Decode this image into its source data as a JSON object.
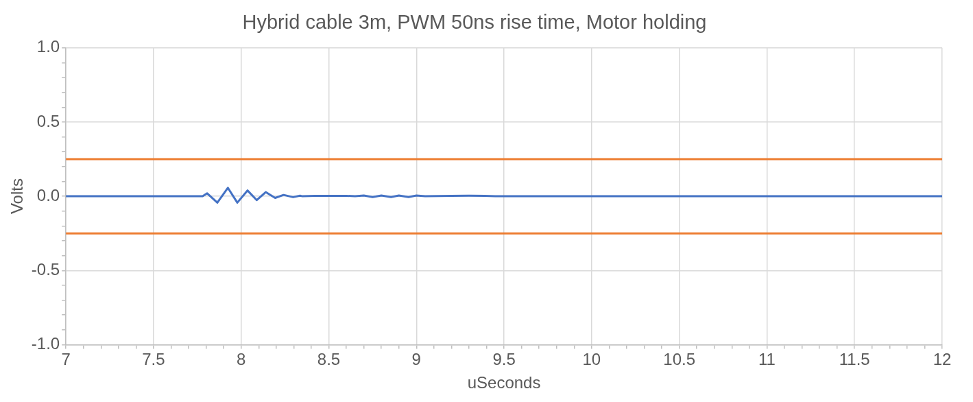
{
  "chart_data": {
    "type": "line",
    "title": "Hybrid cable 3m, PWM 50ns rise time, Motor holding",
    "xlabel": "uSeconds",
    "ylabel": "Volts",
    "series": [
      {
        "color": "#4472c4",
        "x": [
          7,
          7.78,
          7.806,
          7.864,
          7.924,
          7.978,
          8.036,
          8.089,
          8.14,
          8.194,
          8.242,
          8.296,
          8.336,
          8.35,
          8.42,
          8.6,
          8.65,
          8.7,
          8.75,
          8.8,
          8.855,
          8.9,
          8.955,
          9.0,
          9.05,
          9.2,
          9.3,
          9.39,
          9.45,
          12
        ],
        "values": [
          0,
          0,
          0.02,
          -0.043,
          0.057,
          -0.043,
          0.039,
          -0.026,
          0.028,
          -0.011,
          0.009,
          -0.006,
          0.004,
          0,
          0.003,
          0.003,
          0,
          0.005,
          -0.005,
          0.005,
          -0.005,
          0.005,
          -0.005,
          0.005,
          0,
          0.003,
          0.004,
          0.003,
          0,
          0
        ]
      }
    ],
    "ref_lines": [
      {
        "axis": "y",
        "value": 0.25,
        "color": "#ed7d31"
      },
      {
        "axis": "y",
        "value": -0.25,
        "color": "#ed7d31"
      }
    ],
    "xlim": [
      7,
      12
    ],
    "ylim": [
      -1,
      1
    ],
    "xticks": [
      7,
      {
        "value": 7.1,
        "label": null
      },
      {
        "value": 7.2,
        "label": null
      },
      {
        "value": 7.3,
        "label": null
      },
      {
        "value": 7.4,
        "label": null
      },
      7.5,
      {
        "value": 7.6,
        "label": null
      },
      {
        "value": 7.7,
        "label": null
      },
      {
        "value": 7.8,
        "label": null
      },
      {
        "value": 7.9,
        "label": null
      },
      8,
      {
        "value": 8.1,
        "label": null
      },
      {
        "value": 8.2,
        "label": null
      },
      {
        "value": 8.3,
        "label": null
      },
      {
        "value": 8.4,
        "label": null
      },
      8.5,
      {
        "value": 8.6,
        "label": null
      },
      {
        "value": 8.7,
        "label": null
      },
      {
        "value": 8.8,
        "label": null
      },
      {
        "value": 8.9,
        "label": null
      },
      9,
      {
        "value": 9.1,
        "label": null
      },
      {
        "value": 9.2,
        "label": null
      },
      {
        "value": 9.3,
        "label": null
      },
      {
        "value": 9.4,
        "label": null
      },
      9.5,
      {
        "value": 9.6,
        "label": null
      },
      {
        "value": 9.7,
        "label": null
      },
      {
        "value": 9.8,
        "label": null
      },
      {
        "value": 9.9,
        "label": null
      },
      10,
      {
        "value": 10.1,
        "label": null
      },
      {
        "value": 10.2,
        "label": null
      },
      {
        "value": 10.3,
        "label": null
      },
      {
        "value": 10.4,
        "label": null
      },
      10.5,
      {
        "value": 10.6,
        "label": null
      },
      {
        "value": 10.7,
        "label": null
      },
      {
        "value": 10.8,
        "label": null
      },
      {
        "value": 10.9,
        "label": null
      },
      11,
      {
        "value": 11.1,
        "label": null
      },
      {
        "value": 11.2,
        "label": null
      },
      {
        "value": 11.3,
        "label": null
      },
      {
        "value": 11.4,
        "label": null
      },
      11.5,
      {
        "value": 11.6,
        "label": null
      },
      {
        "value": 11.7,
        "label": null
      },
      {
        "value": 11.8,
        "label": null
      },
      {
        "value": 11.9,
        "label": null
      },
      12
    ],
    "yticks": [
      {
        "value": -1,
        "label": "-1.0"
      },
      {
        "value": -0.9,
        "label": null
      },
      {
        "value": -0.8,
        "label": null
      },
      {
        "value": -0.7,
        "label": null
      },
      {
        "value": -0.6,
        "label": null
      },
      {
        "value": -0.5,
        "label": "-0.5"
      },
      {
        "value": -0.4,
        "label": null
      },
      {
        "value": -0.3,
        "label": null
      },
      {
        "value": -0.2,
        "label": null
      },
      {
        "value": -0.1,
        "label": null
      },
      {
        "value": 0,
        "label": "0.0"
      },
      {
        "value": 0.1,
        "label": null
      },
      {
        "value": 0.2,
        "label": null
      },
      {
        "value": 0.3,
        "label": null
      },
      {
        "value": 0.4,
        "label": null
      },
      {
        "value": 0.5,
        "label": "0.5"
      },
      {
        "value": 0.6,
        "label": null
      },
      {
        "value": 0.7,
        "label": null
      },
      {
        "value": 0.8,
        "label": null
      },
      {
        "value": 0.9,
        "label": null
      },
      {
        "value": 1,
        "label": "1.0"
      }
    ],
    "grid": true,
    "legend": false,
    "marker": "none",
    "line_style": "solid"
  }
}
